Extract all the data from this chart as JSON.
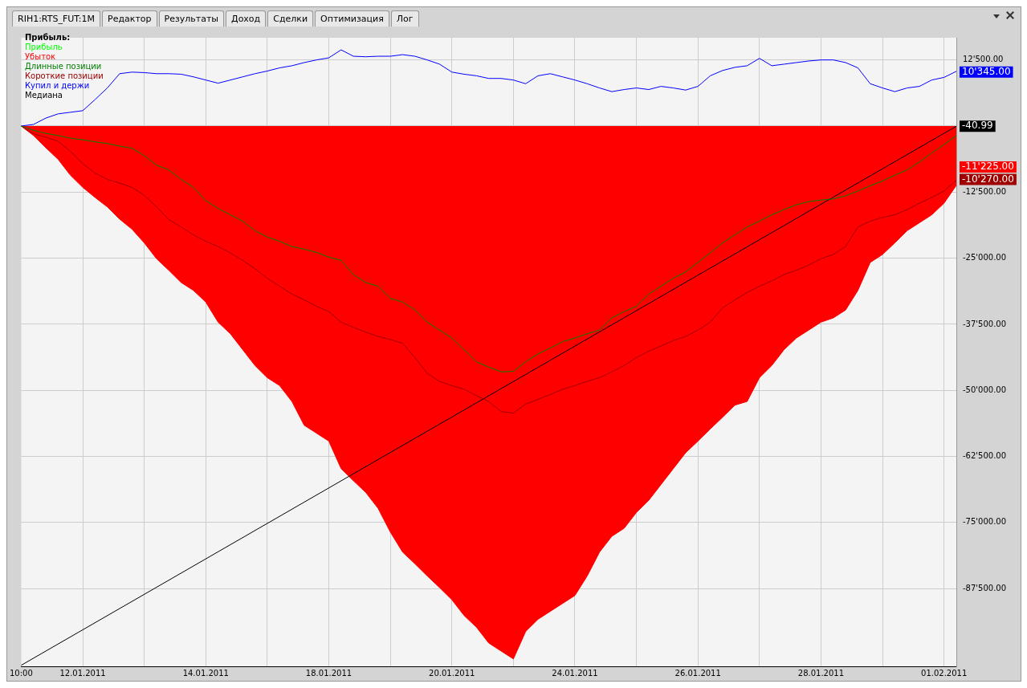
{
  "chart_data": {
    "type": "line",
    "legend_title": "Прибыль:",
    "legend": "top left",
    "grid": true,
    "marker": "none",
    "annotations": [
      "RIH1:RTS_FUT:1M",
      "Редактор",
      "Результаты",
      "Доход",
      "Сделки",
      "Оптимизация",
      "Лог"
    ],
    "categories": [
      "10:00",
      null,
      null,
      null,
      null,
      "12.01.2011",
      null,
      null,
      null,
      null,
      null,
      null,
      null,
      null,
      null,
      "14.01.2011",
      null,
      null,
      null,
      null,
      null,
      null,
      null,
      null,
      null,
      "18.01.2011",
      null,
      null,
      null,
      null,
      null,
      null,
      null,
      null,
      null,
      "20.01.2011",
      null,
      null,
      null,
      null,
      null,
      null,
      null,
      null,
      null,
      "24.01.2011",
      null,
      null,
      null,
      null,
      null,
      null,
      null,
      null,
      null,
      "26.01.2011",
      null,
      null,
      null,
      null,
      null,
      null,
      null,
      null,
      null,
      "28.01.2011",
      null,
      null,
      null,
      null,
      null,
      null,
      null,
      null,
      null,
      "01.02.2011",
      null
    ],
    "ylim": [
      -102200,
      16700
    ],
    "yticks": [
      {
        "value": 12500,
        "label": "12'500.00"
      },
      {
        "value": 0,
        "label": null
      },
      {
        "value": -12500,
        "label": "-12'500.00"
      },
      {
        "value": -25000,
        "label": "-25'000.00"
      },
      {
        "value": -37500,
        "label": "-37'500.00"
      },
      {
        "value": -50000,
        "label": "-50'000.00"
      },
      {
        "value": -62500,
        "label": "-62'500.00"
      },
      {
        "value": -75000,
        "label": "-75'000.00"
      },
      {
        "value": -87500,
        "label": "-87'500.00"
      }
    ],
    "series": [
      {
        "name": "Прибыль",
        "color": "#00ff00",
        "values": [
          null,
          null,
          null,
          null,
          null,
          null,
          null,
          null,
          null,
          null,
          null,
          null,
          null,
          null,
          null,
          null,
          null,
          null,
          null,
          null,
          null,
          null,
          null,
          null,
          null,
          null,
          null,
          null,
          null,
          null,
          null,
          null,
          null,
          null,
          null,
          null,
          null,
          null,
          null,
          null,
          null,
          null,
          null,
          null,
          null,
          null,
          null,
          null,
          null,
          null,
          null,
          null,
          null,
          null,
          null,
          null,
          null,
          null,
          null,
          null,
          null,
          null,
          null,
          null,
          null,
          null,
          null,
          null,
          null,
          null,
          null,
          null,
          null,
          null,
          null,
          null,
          null
        ]
      },
      {
        "name": "Убыток",
        "type": "area",
        "color": "#ff0000",
        "values": [
          0,
          -1800,
          -4100,
          -6300,
          -9300,
          -11600,
          -13500,
          -15300,
          -17600,
          -19500,
          -22100,
          -25100,
          -27300,
          -29600,
          -31100,
          -33300,
          -37100,
          -39300,
          -42300,
          -45300,
          -47600,
          -49100,
          -52100,
          -56600,
          -58100,
          -59600,
          -64800,
          -67100,
          -69300,
          -72300,
          -76800,
          -80600,
          -82800,
          -85100,
          -87300,
          -89600,
          -92600,
          -94800,
          -97800,
          -99300,
          -100800,
          -95600,
          -93300,
          -91800,
          -90300,
          -88800,
          -85100,
          -80600,
          -77600,
          -76100,
          -73100,
          -70800,
          -67800,
          -64800,
          -61800,
          -59600,
          -57300,
          -55100,
          -52800,
          -52100,
          -47600,
          -45300,
          -42300,
          -40100,
          -38600,
          -37100,
          -36300,
          -34800,
          -31100,
          -25800,
          -24300,
          -22100,
          -19800,
          -18300,
          -16800,
          -14600,
          -11225
        ],
        "value_labels": [
          null,
          null,
          null,
          null,
          null,
          null,
          null,
          null,
          null,
          null,
          null,
          null,
          null,
          null,
          null,
          null,
          null,
          null,
          null,
          null,
          null,
          null,
          null,
          null,
          null,
          null,
          null,
          null,
          null,
          null,
          null,
          null,
          null,
          null,
          null,
          null,
          null,
          null,
          null,
          null,
          null,
          null,
          null,
          null,
          null,
          null,
          null,
          null,
          null,
          null,
          null,
          null,
          null,
          null,
          null,
          null,
          null,
          null,
          null,
          null,
          null,
          null,
          null,
          null,
          null,
          null,
          null,
          null,
          null,
          null,
          null,
          null,
          null,
          null,
          null,
          null,
          "-11'225.00"
        ]
      },
      {
        "name": "Длинные позиции",
        "color": "#008000",
        "values": [
          0,
          -800,
          -1400,
          -1800,
          -2300,
          -2600,
          -3000,
          -3300,
          -3800,
          -4200,
          -5600,
          -7400,
          -8300,
          -10100,
          -11600,
          -14100,
          -15600,
          -16800,
          -18000,
          -19800,
          -21000,
          -21800,
          -22800,
          -23300,
          -23900,
          -24800,
          -25400,
          -28100,
          -29600,
          -30300,
          -32600,
          -33300,
          -34800,
          -37100,
          -38600,
          -40100,
          -42300,
          -44600,
          -45600,
          -46500,
          -46400,
          -44600,
          -43100,
          -42000,
          -40800,
          -40100,
          -39300,
          -38600,
          -36300,
          -35100,
          -34100,
          -31800,
          -30300,
          -28800,
          -27600,
          -25800,
          -24000,
          -22100,
          -20600,
          -19100,
          -18000,
          -16800,
          -15800,
          -14900,
          -14300,
          -14000,
          -13800,
          -13200,
          -12300,
          -11300,
          -10400,
          -9300,
          -8300,
          -6800,
          -5100,
          -3500,
          -1800
        ]
      },
      {
        "name": "Короткие позиции",
        "color": "#a00000",
        "values": [
          0,
          -1500,
          -2100,
          -2900,
          -4800,
          -7100,
          -8900,
          -10100,
          -10800,
          -11600,
          -13100,
          -15300,
          -17700,
          -19100,
          -20600,
          -21800,
          -22800,
          -24000,
          -25400,
          -27000,
          -28800,
          -30300,
          -31800,
          -32900,
          -34100,
          -35100,
          -37100,
          -38100,
          -39000,
          -39800,
          -40400,
          -41100,
          -43800,
          -46800,
          -48300,
          -49100,
          -49800,
          -51000,
          -52100,
          -54000,
          -54300,
          -52600,
          -51700,
          -50800,
          -49800,
          -49100,
          -48300,
          -47600,
          -46500,
          -45300,
          -43800,
          -42600,
          -41600,
          -40600,
          -39800,
          -38600,
          -37100,
          -34400,
          -32900,
          -31500,
          -30300,
          -29300,
          -28100,
          -27300,
          -26300,
          -25100,
          -24300,
          -22800,
          -19100,
          -18000,
          -17300,
          -16800,
          -15800,
          -14600,
          -13500,
          -12300,
          -10270
        ],
        "value_labels": [
          null,
          null,
          null,
          null,
          null,
          null,
          null,
          null,
          null,
          null,
          null,
          null,
          null,
          null,
          null,
          null,
          null,
          null,
          null,
          null,
          null,
          null,
          null,
          null,
          null,
          null,
          null,
          null,
          null,
          null,
          null,
          null,
          null,
          null,
          null,
          null,
          null,
          null,
          null,
          null,
          null,
          null,
          null,
          null,
          null,
          null,
          null,
          null,
          null,
          null,
          null,
          null,
          null,
          null,
          null,
          null,
          null,
          null,
          null,
          null,
          null,
          null,
          null,
          null,
          null,
          null,
          null,
          null,
          null,
          null,
          null,
          null,
          null,
          null,
          null,
          null,
          "-10'270.00"
        ]
      },
      {
        "name": "Купил и держи",
        "color": "#0000ff",
        "values": [
          0,
          300,
          1500,
          2300,
          2600,
          2900,
          5000,
          7200,
          9900,
          10200,
          10100,
          9900,
          9900,
          9800,
          9300,
          8700,
          8100,
          8700,
          9300,
          9900,
          10400,
          11000,
          11400,
          12000,
          12500,
          12900,
          14400,
          13200,
          13100,
          13200,
          13200,
          13500,
          13200,
          12500,
          11700,
          10200,
          9800,
          9500,
          9000,
          9000,
          8700,
          8000,
          9500,
          9900,
          9300,
          8700,
          8000,
          7200,
          6500,
          6900,
          7200,
          6900,
          7500,
          7200,
          6800,
          7500,
          9500,
          10500,
          11100,
          11400,
          12800,
          11400,
          11700,
          12000,
          12300,
          12500,
          12500,
          12000,
          11000,
          8000,
          7200,
          6500,
          7200,
          7500,
          8700,
          9200,
          10345
        ],
        "value_labels": [
          null,
          null,
          null,
          null,
          null,
          null,
          null,
          null,
          null,
          null,
          null,
          null,
          null,
          null,
          null,
          null,
          null,
          null,
          null,
          null,
          null,
          null,
          null,
          null,
          null,
          null,
          null,
          null,
          null,
          null,
          null,
          null,
          null,
          null,
          null,
          null,
          null,
          null,
          null,
          null,
          null,
          null,
          null,
          null,
          null,
          null,
          null,
          null,
          null,
          null,
          null,
          null,
          null,
          null,
          null,
          null,
          null,
          null,
          null,
          null,
          null,
          null,
          null,
          null,
          null,
          null,
          null,
          null,
          null,
          null,
          null,
          null,
          null,
          null,
          null,
          null,
          "10'345.00"
        ]
      },
      {
        "name": "Медиана",
        "color": "#000000",
        "values": [
          -102000,
          null,
          null,
          null,
          null,
          null,
          null,
          null,
          null,
          null,
          null,
          null,
          null,
          null,
          null,
          null,
          null,
          null,
          null,
          null,
          null,
          null,
          null,
          null,
          null,
          null,
          null,
          null,
          null,
          null,
          null,
          null,
          null,
          null,
          null,
          null,
          null,
          null,
          null,
          null,
          null,
          null,
          null,
          null,
          null,
          null,
          null,
          null,
          null,
          null,
          null,
          null,
          null,
          null,
          null,
          null,
          null,
          null,
          null,
          null,
          null,
          null,
          null,
          null,
          null,
          null,
          null,
          null,
          null,
          null,
          null,
          null,
          null,
          null,
          null,
          null,
          -40.99
        ],
        "value_labels": [
          null,
          null,
          null,
          null,
          null,
          null,
          null,
          null,
          null,
          null,
          null,
          null,
          null,
          null,
          null,
          null,
          null,
          null,
          null,
          null,
          null,
          null,
          null,
          null,
          null,
          null,
          null,
          null,
          null,
          null,
          null,
          null,
          null,
          null,
          null,
          null,
          null,
          null,
          null,
          null,
          null,
          null,
          null,
          null,
          null,
          null,
          null,
          null,
          null,
          null,
          null,
          null,
          null,
          null,
          null,
          null,
          null,
          null,
          null,
          null,
          null,
          null,
          null,
          null,
          null,
          null,
          null,
          null,
          null,
          null,
          null,
          null,
          null,
          null,
          null,
          null,
          "-40.99"
        ]
      }
    ]
  }
}
